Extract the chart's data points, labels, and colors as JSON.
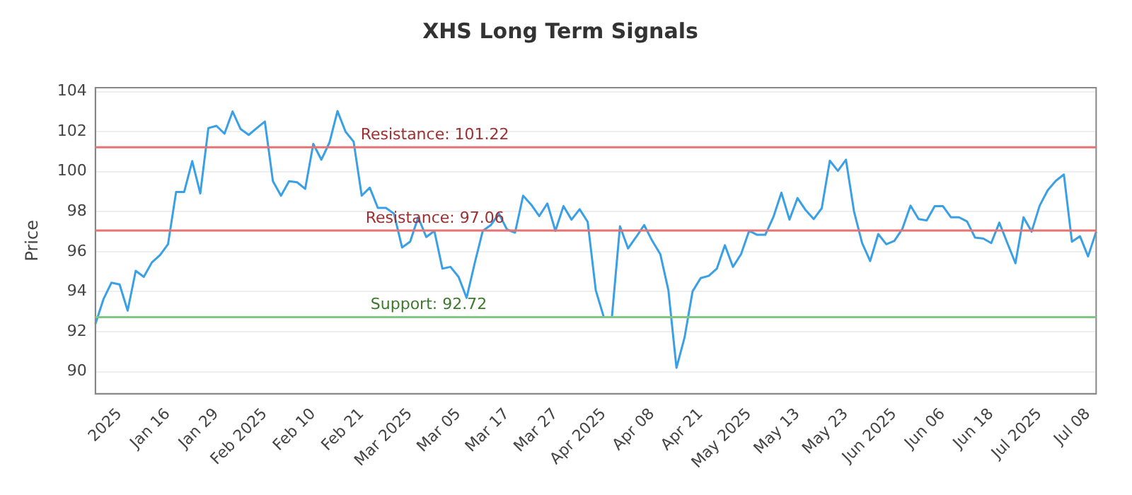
{
  "chart_data": {
    "type": "line",
    "title": "XHS Long Term Signals",
    "ylabel": "Price",
    "categories": [
      null,
      null,
      null,
      "2025",
      null,
      null,
      null,
      null,
      null,
      "Jan 16",
      null,
      null,
      null,
      null,
      null,
      "Jan 29",
      null,
      null,
      null,
      null,
      null,
      "Feb 2025",
      null,
      null,
      null,
      null,
      null,
      "Feb 10",
      null,
      null,
      null,
      null,
      null,
      "Feb 21",
      null,
      null,
      null,
      null,
      null,
      "Mar 2025",
      null,
      null,
      null,
      null,
      null,
      "Mar 05",
      null,
      null,
      null,
      null,
      null,
      "Mar 17",
      null,
      null,
      null,
      null,
      null,
      "Mar 27",
      null,
      null,
      null,
      null,
      null,
      "Apr 2025",
      null,
      null,
      null,
      null,
      null,
      "Apr 08",
      null,
      null,
      null,
      null,
      null,
      "Apr 21",
      null,
      null,
      null,
      null,
      null,
      "May 2025",
      null,
      null,
      null,
      null,
      null,
      "May 13",
      null,
      null,
      null,
      null,
      null,
      "May 23",
      null,
      null,
      null,
      null,
      null,
      "Jun 2025",
      null,
      null,
      null,
      null,
      null,
      "Jun 06",
      null,
      null,
      null,
      null,
      null,
      "Jun 18",
      null,
      null,
      null,
      null,
      null,
      "Jul 2025",
      null,
      null,
      null,
      null,
      null,
      "Jul 08",
      null
    ],
    "series": [
      {
        "color": "#3aa0e6",
        "values": [
          92.38,
          93.62,
          94.45,
          94.36,
          93.05,
          95.04,
          94.74,
          95.46,
          95.82,
          96.37,
          98.98,
          98.98,
          100.53,
          98.91,
          102.18,
          102.29,
          101.9,
          103.01,
          102.13,
          101.84,
          102.18,
          102.51,
          99.52,
          98.8,
          99.52,
          99.47,
          99.14,
          101.39,
          100.6,
          101.45,
          103.03,
          102.0,
          101.5,
          98.8,
          99.2,
          98.19,
          98.19,
          97.9,
          96.21,
          96.5,
          97.72,
          96.73,
          97.04,
          95.15,
          95.24,
          94.74,
          93.69,
          95.42,
          97.04,
          97.33,
          97.9,
          97.11,
          96.95,
          98.8,
          98.35,
          97.78,
          98.41,
          97.04,
          98.28,
          97.6,
          98.12,
          97.49,
          94.07,
          92.72,
          92.72,
          97.27,
          96.16,
          96.73,
          97.33,
          96.54,
          95.87,
          94.07,
          90.19,
          91.7,
          94.02,
          94.68,
          94.79,
          95.15,
          96.32,
          95.24,
          95.87,
          97.04,
          96.84,
          96.84,
          97.72,
          98.95,
          97.6,
          98.68,
          98.08,
          97.63,
          98.17,
          100.55,
          100.04,
          100.6,
          98.01,
          96.43,
          95.53,
          96.88,
          96.37,
          96.54,
          97.15,
          98.3,
          97.63,
          97.56,
          98.28,
          98.28,
          97.72,
          97.72,
          97.51,
          96.7,
          96.66,
          96.43,
          97.45,
          96.43,
          95.42,
          97.72,
          97.0,
          98.3,
          99.07,
          99.54,
          99.86,
          96.5,
          96.77,
          95.76,
          97.0
        ]
      }
    ],
    "ylim": [
      88.9,
      104.2
    ],
    "yticks": [
      90,
      92,
      94,
      96,
      98,
      100,
      102,
      104
    ],
    "grid": "y",
    "legend": false,
    "marker": "none",
    "line_style": "solid",
    "ref_lines": [
      {
        "axis": "y",
        "value": 101.22,
        "label": "Resistance: 101.22",
        "color": "#e57373"
      },
      {
        "axis": "y",
        "value": 97.06,
        "label": "Resistance: 97.06",
        "color": "#e57373"
      },
      {
        "axis": "y",
        "value": 92.72,
        "label": "Support: 92.72",
        "color": "#81c784"
      }
    ]
  }
}
